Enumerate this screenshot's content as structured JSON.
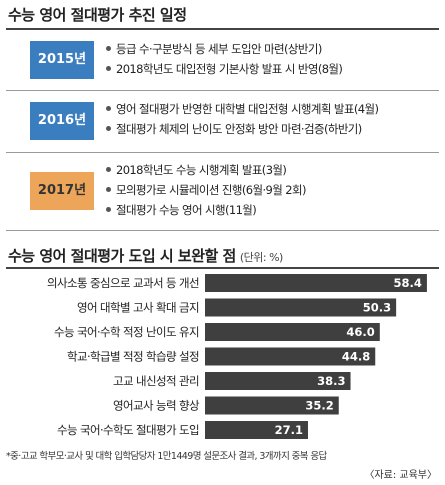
{
  "schedule": {
    "title": "수능 영어 절대평가 추진 일정",
    "rows": [
      {
        "year": "2015년",
        "color": "#3b7ec0",
        "items": [
          "등급 수·구분방식 등 세부 도입안 마련(상반기)",
          "2018학년도 대입전형 기본사항 발표 시 반영(8월)"
        ]
      },
      {
        "year": "2016년",
        "color": "#3b7ec0",
        "items": [
          "영어 절대평가 반영한 대학별 대입전형 시행계획 발표(4월)",
          "절대평가 체제의 난이도 안정화 방안 마련·검증(하반기)"
        ]
      },
      {
        "year": "2017년",
        "color": "#eda55a",
        "items": [
          "2018학년도 수능 시행계획 발표(3월)",
          "모의평가로 시뮬레이션 진행(6월·9월 2회)",
          "절대평가 수능 영어 시행(11월)"
        ]
      }
    ]
  },
  "chart_data": {
    "type": "bar",
    "orientation": "horizontal",
    "title": "수능 영어 절대평가 도입 시 보완할 점",
    "unit_label": "(단위: %)",
    "categories": [
      "의사소통 중심으로 교과서 등 개선",
      "영어 대학별 고사 확대 금지",
      "수능 국어·수학 적정 난이도 유지",
      "학교·학급별 적정 학습량 설정",
      "고교 내신성적 관리",
      "영어교사 능력 향상",
      "수능 국어·수학도 절대평가 도입"
    ],
    "values": [
      58.4,
      50.3,
      46.0,
      44.8,
      38.3,
      35.2,
      27.1
    ],
    "data_labels": [
      "58.4",
      "50.3",
      "46.0",
      "44.8",
      "38.3",
      "35.2",
      "27.1"
    ],
    "xlim": [
      0,
      60
    ],
    "bar_color": "#3f3f3f",
    "label_color": "#ffffff",
    "grid": false,
    "legend": "none"
  },
  "footnote": "*중·고교 학부모·교사 및 대학 입학담당자 1만1449명 설문조사 결과, 3개까지 중복 응답",
  "source": "〈자료: 교육부〉"
}
